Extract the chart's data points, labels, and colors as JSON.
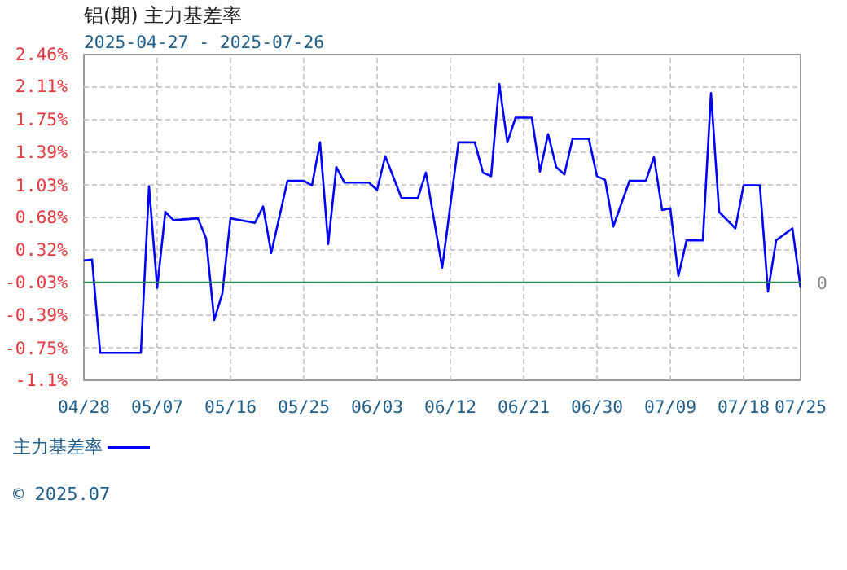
{
  "chart_data": {
    "type": "line",
    "title": "铝(期) 主力基差率",
    "subtitle": "2025-04-27 - 2025-07-26",
    "x": [
      "2025-04-28",
      "2025-04-29",
      "2025-04-30",
      "2025-05-05",
      "2025-05-06",
      "2025-05-07",
      "2025-05-08",
      "2025-05-09",
      "2025-05-12",
      "2025-05-13",
      "2025-05-14",
      "2025-05-15",
      "2025-05-16",
      "2025-05-19",
      "2025-05-20",
      "2025-05-21",
      "2025-05-23",
      "2025-05-25",
      "2025-05-26",
      "2025-05-27",
      "2025-05-28",
      "2025-05-29",
      "2025-05-30",
      "2025-06-02",
      "2025-06-03",
      "2025-06-04",
      "2025-06-06",
      "2025-06-08",
      "2025-06-09",
      "2025-06-11",
      "2025-06-13",
      "2025-06-15",
      "2025-06-16",
      "2025-06-17",
      "2025-06-18",
      "2025-06-19",
      "2025-06-20",
      "2025-06-22",
      "2025-06-23",
      "2025-06-24",
      "2025-06-25",
      "2025-06-26",
      "2025-06-27",
      "2025-06-29",
      "2025-06-30",
      "2025-07-01",
      "2025-07-02",
      "2025-07-04",
      "2025-07-06",
      "2025-07-07",
      "2025-07-08",
      "2025-07-09",
      "2025-07-10",
      "2025-07-11",
      "2025-07-13",
      "2025-07-14",
      "2025-07-15",
      "2025-07-17",
      "2025-07-18",
      "2025-07-20",
      "2025-07-21",
      "2025-07-22",
      "2025-07-24",
      "2025-07-25"
    ],
    "series": [
      {
        "name": "主力基差率",
        "color": "#0000ff",
        "values": [
          0.21,
          0.22,
          -0.8,
          -0.8,
          1.02,
          -0.09,
          0.74,
          0.65,
          0.67,
          0.45,
          -0.44,
          -0.15,
          0.67,
          0.62,
          0.8,
          0.29,
          1.08,
          1.08,
          1.03,
          1.5,
          0.39,
          1.23,
          1.06,
          1.06,
          0.98,
          1.35,
          0.89,
          0.89,
          1.17,
          0.13,
          1.5,
          1.5,
          1.17,
          1.13,
          2.14,
          1.5,
          1.77,
          1.77,
          1.18,
          1.59,
          1.23,
          1.15,
          1.54,
          1.54,
          1.13,
          1.09,
          0.58,
          1.08,
          1.08,
          1.34,
          0.76,
          0.78,
          0.04,
          0.43,
          0.43,
          2.04,
          0.74,
          0.56,
          1.03,
          1.03,
          -0.13,
          0.43,
          0.56,
          -0.09
        ]
      }
    ],
    "xlim": [
      "2025-04-28",
      "2025-07-25"
    ],
    "xticks": [
      {
        "value": "2025-04-28",
        "label": "04/28"
      },
      {
        "value": "2025-05-07",
        "label": "05/07"
      },
      {
        "value": "2025-05-16",
        "label": "05/16"
      },
      {
        "value": "2025-05-25",
        "label": "05/25"
      },
      {
        "value": "2025-06-03",
        "label": "06/03"
      },
      {
        "value": "2025-06-12",
        "label": "06/12"
      },
      {
        "value": "2025-06-21",
        "label": "06/21"
      },
      {
        "value": "2025-06-30",
        "label": "06/30"
      },
      {
        "value": "2025-07-09",
        "label": "07/09"
      },
      {
        "value": "2025-07-18",
        "label": "07/18"
      },
      {
        "value": "2025-07-25",
        "label": "07/25"
      }
    ],
    "ylim": [
      -1.1,
      2.46
    ],
    "yticks": [
      {
        "value": -1.1,
        "label": "-1.1%"
      },
      {
        "value": -0.75,
        "label": "-0.75%"
      },
      {
        "value": -0.39,
        "label": "-0.39%"
      },
      {
        "value": -0.03,
        "label": "-0.03%"
      },
      {
        "value": 0.32,
        "label": "0.32%"
      },
      {
        "value": 0.68,
        "label": "0.68%"
      },
      {
        "value": 1.03,
        "label": "1.03%"
      },
      {
        "value": 1.39,
        "label": "1.39%"
      },
      {
        "value": 1.75,
        "label": "1.75%"
      },
      {
        "value": 2.11,
        "label": "2.11%"
      },
      {
        "value": 2.46,
        "label": "2.46%"
      }
    ],
    "ref_lines": [
      {
        "axis": "y",
        "value": -0.03,
        "label": "0",
        "color": "#2e8b57"
      }
    ],
    "grid": true,
    "legend": "bottom left",
    "line_style": "solid",
    "marker": "none",
    "annotations": [
      "© 2025.07"
    ]
  }
}
